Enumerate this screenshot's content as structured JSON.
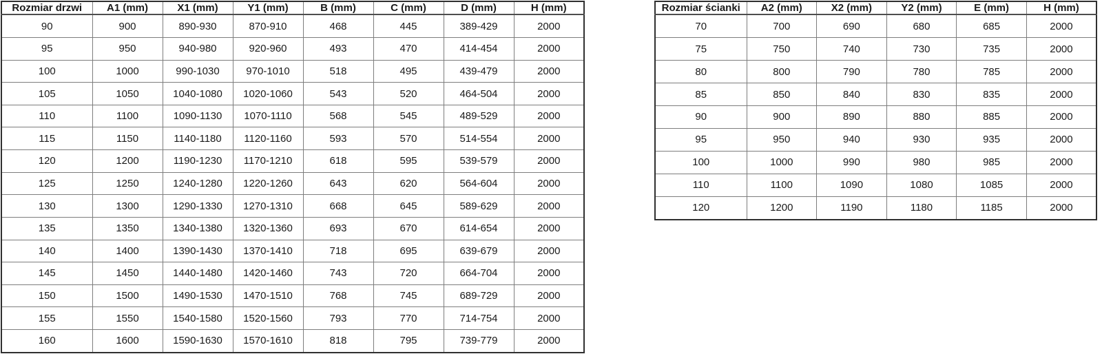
{
  "colors": {
    "background": "#ffffff",
    "text": "#1a1a1a",
    "border_outer": "#2f2f2f",
    "border_inner": "#7d7d7d"
  },
  "tables": {
    "doors": {
      "name": "door-size-table",
      "headers": [
        "Rozmiar drzwi",
        "A1 (mm)",
        "X1 (mm)",
        "Y1 (mm)",
        "B (mm)",
        "C (mm)",
        "D (mm)",
        "H (mm)"
      ],
      "rows": [
        [
          "90",
          "900",
          "890-930",
          "870-910",
          "468",
          "445",
          "389-429",
          "2000"
        ],
        [
          "95",
          "950",
          "940-980",
          "920-960",
          "493",
          "470",
          "414-454",
          "2000"
        ],
        [
          "100",
          "1000",
          "990-1030",
          "970-1010",
          "518",
          "495",
          "439-479",
          "2000"
        ],
        [
          "105",
          "1050",
          "1040-1080",
          "1020-1060",
          "543",
          "520",
          "464-504",
          "2000"
        ],
        [
          "110",
          "1100",
          "1090-1130",
          "1070-1110",
          "568",
          "545",
          "489-529",
          "2000"
        ],
        [
          "115",
          "1150",
          "1140-1180",
          "1120-1160",
          "593",
          "570",
          "514-554",
          "2000"
        ],
        [
          "120",
          "1200",
          "1190-1230",
          "1170-1210",
          "618",
          "595",
          "539-579",
          "2000"
        ],
        [
          "125",
          "1250",
          "1240-1280",
          "1220-1260",
          "643",
          "620",
          "564-604",
          "2000"
        ],
        [
          "130",
          "1300",
          "1290-1330",
          "1270-1310",
          "668",
          "645",
          "589-629",
          "2000"
        ],
        [
          "135",
          "1350",
          "1340-1380",
          "1320-1360",
          "693",
          "670",
          "614-654",
          "2000"
        ],
        [
          "140",
          "1400",
          "1390-1430",
          "1370-1410",
          "718",
          "695",
          "639-679",
          "2000"
        ],
        [
          "145",
          "1450",
          "1440-1480",
          "1420-1460",
          "743",
          "720",
          "664-704",
          "2000"
        ],
        [
          "150",
          "1500",
          "1490-1530",
          "1470-1510",
          "768",
          "745",
          "689-729",
          "2000"
        ],
        [
          "155",
          "1550",
          "1540-1580",
          "1520-1560",
          "793",
          "770",
          "714-754",
          "2000"
        ],
        [
          "160",
          "1600",
          "1590-1630",
          "1570-1610",
          "818",
          "795",
          "739-779",
          "2000"
        ]
      ]
    },
    "walls": {
      "name": "wall-size-table",
      "headers": [
        "Rozmiar ścianki",
        "A2 (mm)",
        "X2 (mm)",
        "Y2 (mm)",
        "E (mm)",
        "H (mm)"
      ],
      "rows": [
        [
          "70",
          "700",
          "690",
          "680",
          "685",
          "2000"
        ],
        [
          "75",
          "750",
          "740",
          "730",
          "735",
          "2000"
        ],
        [
          "80",
          "800",
          "790",
          "780",
          "785",
          "2000"
        ],
        [
          "85",
          "850",
          "840",
          "830",
          "835",
          "2000"
        ],
        [
          "90",
          "900",
          "890",
          "880",
          "885",
          "2000"
        ],
        [
          "95",
          "950",
          "940",
          "930",
          "935",
          "2000"
        ],
        [
          "100",
          "1000",
          "990",
          "980",
          "985",
          "2000"
        ],
        [
          "110",
          "1100",
          "1090",
          "1080",
          "1085",
          "2000"
        ],
        [
          "120",
          "1200",
          "1190",
          "1180",
          "1185",
          "2000"
        ]
      ]
    }
  }
}
